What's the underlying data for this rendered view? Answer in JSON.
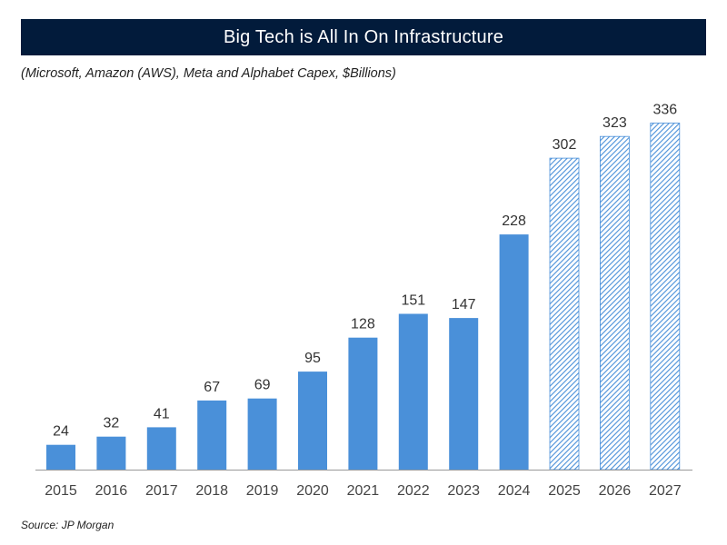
{
  "colors": {
    "header_bg": "#021b3b",
    "bar_actual": "#4a90d9",
    "bar_forecast_stripe": "#4a90d9",
    "axis": "#999999"
  },
  "header": {
    "title": "Big Tech is All In On Infrastructure",
    "subtitle": "(Microsoft, Amazon (AWS), Meta and Alphabet Capex, $Billions)"
  },
  "footer": {
    "source": "Source: JP Morgan"
  },
  "chart_data": {
    "type": "bar",
    "title": "Big Tech is All In On Infrastructure",
    "subtitle": "(Microsoft, Amazon (AWS), Meta and Alphabet Capex, $Billions)",
    "xlabel": "",
    "ylabel": "",
    "ylim": [
      0,
      350
    ],
    "grid": false,
    "categories": [
      "2015",
      "2016",
      "2017",
      "2018",
      "2019",
      "2020",
      "2021",
      "2022",
      "2023",
      "2024",
      "2025",
      "2026",
      "2027"
    ],
    "values": [
      24,
      32,
      41,
      67,
      69,
      95,
      128,
      151,
      147,
      228,
      302,
      323,
      336
    ],
    "value_labels": [
      "24",
      "32",
      "41",
      "67",
      "69",
      "95",
      "128",
      "151",
      "147",
      "228",
      "302",
      "323",
      "336"
    ],
    "forecast": [
      false,
      false,
      false,
      false,
      false,
      false,
      false,
      false,
      false,
      false,
      true,
      true,
      true
    ]
  }
}
